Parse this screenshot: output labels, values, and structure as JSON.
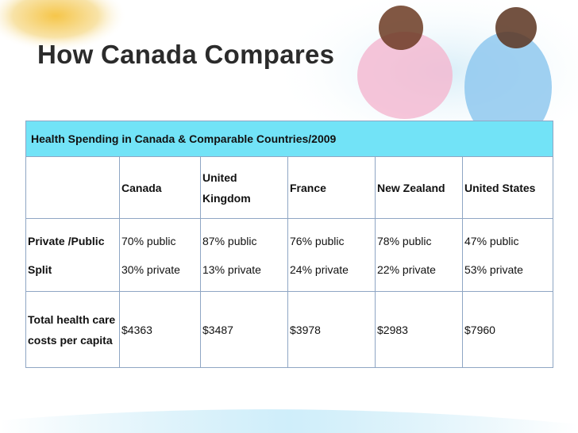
{
  "title": "How Canada Compares",
  "table": {
    "caption": "Health Spending in Canada & Comparable Countries/2009",
    "columns": [
      "Canada",
      "United Kingdom",
      "France",
      "New Zealand",
      "United States"
    ],
    "rows": [
      {
        "label": "Private /Public Split",
        "cells": [
          [
            "70% public",
            "30% private"
          ],
          [
            "87% public",
            "13% private"
          ],
          [
            "76% public",
            "24% private"
          ],
          [
            "78% public",
            "22% private"
          ],
          [
            "47% public",
            "53% private"
          ]
        ]
      },
      {
        "label": "Total health care costs per capita",
        "cells": [
          "$4363",
          "$3487",
          "$3978",
          "$2983",
          "$7960"
        ]
      }
    ]
  }
}
